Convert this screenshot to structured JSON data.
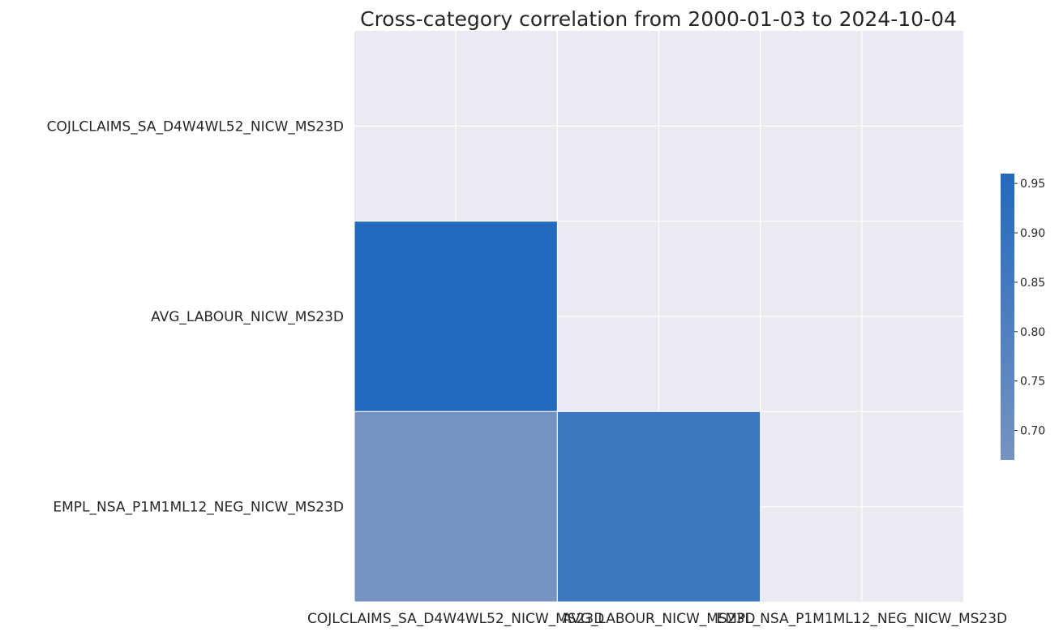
{
  "chart_data": {
    "type": "heatmap",
    "title": "Cross-category correlation from 2000-01-03 to 2024-10-04",
    "row_labels": [
      "COJLCLAIMS_SA_D4W4WL52_NICW_MS23D",
      "AVG_LABOUR_NICW_MS23D",
      "EMPL_NSA_P1M1ML12_NEG_NICW_MS23D"
    ],
    "col_labels": [
      "COJLCLAIMS_SA_D4W4WL52_NICW_MS23D",
      "AVG_LABOUR_NICW_MS23D",
      "EMPL_NSA_P1M1ML12_NEG_NICW_MS23D"
    ],
    "values": [
      [
        null,
        null,
        null
      ],
      [
        0.96,
        null,
        null
      ],
      [
        0.67,
        0.87,
        null
      ]
    ],
    "mask": "upper-triangle-and-diagonal",
    "grid": true,
    "colorbar": {
      "vmin": 0.67,
      "vmax": 0.96,
      "ticks": [
        "0.70",
        "0.75",
        "0.80",
        "0.85",
        "0.90",
        "0.95"
      ],
      "tick_values": [
        0.7,
        0.75,
        0.8,
        0.85,
        0.9,
        0.95
      ],
      "low_color": "#7593c0",
      "high_color": "#2369bd",
      "placement": "right"
    },
    "background_color": "#eaeaf2",
    "grid_color": "#ffffff"
  }
}
